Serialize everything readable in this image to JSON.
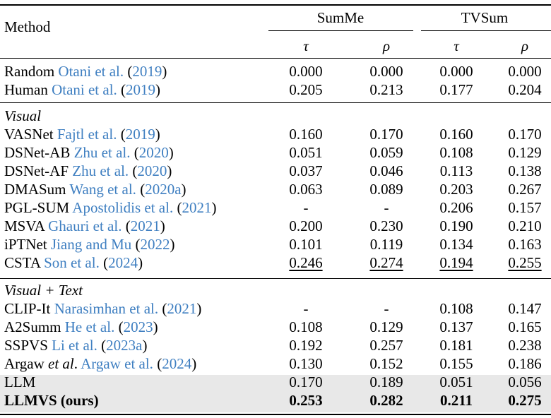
{
  "header": {
    "method": "Method",
    "groups": [
      "SumMe",
      "TVSum"
    ],
    "metrics": [
      "τ",
      "ρ",
      "τ",
      "ρ"
    ]
  },
  "sections": [
    {
      "label": "",
      "rows": [
        {
          "name": "Random",
          "cite_author": "Otani et al.",
          "cite_year": "2019",
          "values": [
            "0.000",
            "0.000",
            "0.000",
            "0.000"
          ]
        },
        {
          "name": "Human",
          "cite_author": "Otani et al.",
          "cite_year": "2019",
          "values": [
            "0.205",
            "0.213",
            "0.177",
            "0.204"
          ]
        }
      ]
    },
    {
      "label": "Visual",
      "rows": [
        {
          "name": "VASNet",
          "cite_author": "Fajtl et al.",
          "cite_year": "2019",
          "values": [
            "0.160",
            "0.170",
            "0.160",
            "0.170"
          ]
        },
        {
          "name": "DSNet-AB",
          "cite_author": "Zhu et al.",
          "cite_year": "2020",
          "values": [
            "0.051",
            "0.059",
            "0.108",
            "0.129"
          ]
        },
        {
          "name": "DSNet-AF",
          "cite_author": "Zhu et al.",
          "cite_year": "2020",
          "values": [
            "0.037",
            "0.046",
            "0.113",
            "0.138"
          ]
        },
        {
          "name": "DMASum",
          "cite_author": "Wang et al.",
          "cite_year": "2020a",
          "values": [
            "0.063",
            "0.089",
            "0.203",
            "0.267"
          ]
        },
        {
          "name": "PGL-SUM",
          "cite_author": "Apostolidis et al.",
          "cite_year": "2021",
          "values": [
            "-",
            "-",
            "0.206",
            "0.157"
          ]
        },
        {
          "name": "MSVA",
          "cite_author": "Ghauri et al.",
          "cite_year": "2021",
          "values": [
            "0.200",
            "0.230",
            "0.190",
            "0.210"
          ]
        },
        {
          "name": "iPTNet",
          "cite_author": "Jiang and Mu",
          "cite_year": "2022",
          "values": [
            "0.101",
            "0.119",
            "0.134",
            "0.163"
          ]
        },
        {
          "name": "CSTA",
          "cite_author": "Son et al.",
          "cite_year": "2024",
          "values": [
            "0.246",
            "0.274",
            "0.194",
            "0.255"
          ],
          "underline": true
        }
      ]
    },
    {
      "label": "Visual + Text",
      "rows": [
        {
          "name": "CLIP-It",
          "cite_author": "Narasimhan et al.",
          "cite_year": "2021",
          "values": [
            "-",
            "-",
            "0.108",
            "0.147"
          ]
        },
        {
          "name": "A2Summ",
          "cite_author": "He et al.",
          "cite_year": "2023",
          "values": [
            "0.108",
            "0.129",
            "0.137",
            "0.165"
          ]
        },
        {
          "name": "SSPVS",
          "cite_author": "Li et al.",
          "cite_year": "2023a",
          "values": [
            "0.192",
            "0.257",
            "0.181",
            "0.238"
          ]
        },
        {
          "name": "Argaw",
          "name_italic_suffix": "et al",
          "name_after_italic": ".",
          "cite_author": "Argaw et al.",
          "cite_year": "2024",
          "values": [
            "0.130",
            "0.152",
            "0.155",
            "0.186"
          ]
        },
        {
          "name": "LLM",
          "cite_author": "",
          "cite_year": "",
          "values": [
            "0.170",
            "0.189",
            "0.051",
            "0.056"
          ],
          "highlight": true
        },
        {
          "name": "LLMVS (ours)",
          "cite_author": "",
          "cite_year": "",
          "values": [
            "0.253",
            "0.282",
            "0.211",
            "0.275"
          ],
          "highlight": true,
          "bold": true
        }
      ]
    }
  ]
}
